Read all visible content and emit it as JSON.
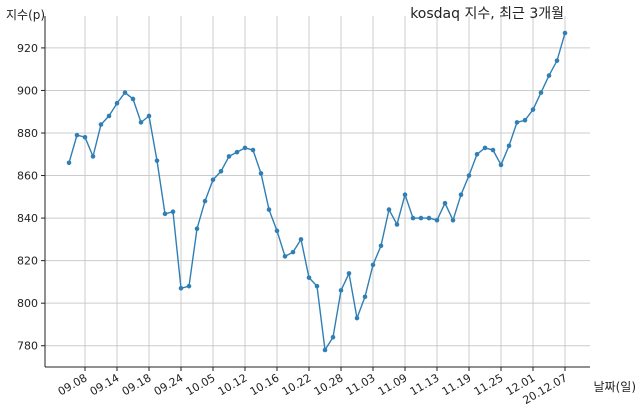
{
  "chart_data": {
    "type": "line",
    "title": "kosdaq 지수, 최근 3개월",
    "ylabel": "지수(p)",
    "xlabel": "날짜(일)",
    "ylim": [
      770,
      935
    ],
    "yticks": [
      780,
      800,
      820,
      840,
      860,
      880,
      900,
      920
    ],
    "grid": true,
    "x_tick_labels": [
      {
        "index": 2,
        "label": "09.08"
      },
      {
        "index": 6,
        "label": "09.14"
      },
      {
        "index": 10,
        "label": "09.18"
      },
      {
        "index": 14,
        "label": "09.24"
      },
      {
        "index": 18,
        "label": "10.05"
      },
      {
        "index": 22,
        "label": "10.12"
      },
      {
        "index": 26,
        "label": "10.16"
      },
      {
        "index": 30,
        "label": "10.22"
      },
      {
        "index": 34,
        "label": "10.28"
      },
      {
        "index": 38,
        "label": "11.03"
      },
      {
        "index": 42,
        "label": "11.09"
      },
      {
        "index": 46,
        "label": "11.13"
      },
      {
        "index": 50,
        "label": "11.19"
      },
      {
        "index": 54,
        "label": "11.25"
      },
      {
        "index": 58,
        "label": "12.01"
      },
      {
        "index": 62,
        "label": "20.12.07"
      }
    ],
    "series": [
      {
        "color": "#2f7fb5",
        "values": [
          866,
          879,
          878,
          869,
          884,
          888,
          894,
          899,
          896,
          885,
          888,
          867,
          842,
          843,
          807,
          808,
          835,
          848,
          858,
          862,
          869,
          871,
          873,
          872,
          861,
          844,
          834,
          822,
          824,
          830,
          812,
          808,
          778,
          784,
          806,
          814,
          793,
          803,
          818,
          827,
          844,
          837,
          851,
          840,
          840,
          840,
          839,
          847,
          839,
          851,
          860,
          870,
          873,
          872,
          865,
          874,
          885,
          886,
          891,
          899,
          907,
          914,
          927
        ]
      }
    ]
  }
}
